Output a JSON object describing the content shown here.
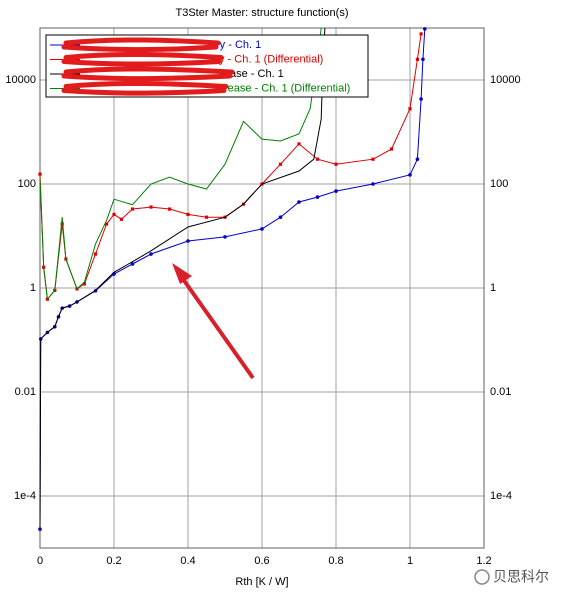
{
  "chart_data": {
    "type": "line",
    "title": "T3Ster Master: structure function(s)",
    "x_label": "Rth  [K / W]",
    "log_y": true,
    "grid": true,
    "ylim": [
      1e-05,
      100000
    ],
    "xlim": [
      0,
      1.2
    ],
    "xticks": [
      0,
      0.2,
      0.4,
      0.6,
      0.8,
      1,
      1.2
    ],
    "yticks": [
      {
        "value": 0.0001,
        "label": "1e-4"
      },
      0.01,
      1,
      100,
      10000
    ],
    "legend": "top-left",
    "series": [
      {
        "name": "ry - Ch. 1",
        "color": "#0000cc",
        "marker": "circle",
        "x": [
          0,
          0.002,
          0.02,
          0.04,
          0.05,
          0.06,
          0.08,
          0.1,
          0.15,
          0.2,
          0.25,
          0.3,
          0.4,
          0.5,
          0.6,
          0.65,
          0.7,
          0.75,
          0.8,
          0.9,
          1.0,
          1.02,
          1.03,
          1.035,
          1.04
        ],
        "values": [
          2.3e-05,
          0.105,
          0.14,
          0.18,
          0.28,
          0.41,
          0.45,
          0.54,
          0.88,
          1.86,
          2.9,
          4.5,
          8.0,
          9.6,
          13.7,
          23,
          45,
          56,
          73,
          100,
          150,
          300,
          4300,
          25000,
          96000
        ]
      },
      {
        "name": "y - Ch. 1 (Differential)",
        "color": "#e00000",
        "marker": "square",
        "x": [
          0,
          0.01,
          0.02,
          0.04,
          0.06,
          0.07,
          0.1,
          0.12,
          0.15,
          0.18,
          0.2,
          0.22,
          0.25,
          0.3,
          0.35,
          0.4,
          0.45,
          0.5,
          0.55,
          0.6,
          0.65,
          0.7,
          0.75,
          0.8,
          0.9,
          0.95,
          1.0,
          1.02,
          1.03
        ],
        "values": [
          155,
          2.5,
          0.61,
          0.9,
          17,
          3.6,
          0.96,
          1.2,
          4.5,
          17,
          26,
          21,
          33,
          36,
          33,
          26,
          23,
          23,
          41,
          100,
          240,
          590,
          300,
          240,
          300,
          470,
          2800,
          25000,
          77000
        ]
      },
      {
        "name": "ase - Ch. 1",
        "color": "#000000",
        "marker": null,
        "x": [
          0,
          0.002,
          0.02,
          0.04,
          0.05,
          0.06,
          0.08,
          0.1,
          0.15,
          0.2,
          0.25,
          0.3,
          0.4,
          0.5,
          0.55,
          0.6,
          0.7,
          0.74,
          0.76,
          0.765,
          0.77
        ],
        "values": [
          2.3e-05,
          0.105,
          0.14,
          0.18,
          0.28,
          0.41,
          0.45,
          0.54,
          0.9,
          2.0,
          3.2,
          5.2,
          14.9,
          23,
          41,
          100,
          178,
          300,
          1780,
          25000,
          100000
        ]
      },
      {
        "name": "rease - Ch. 1 (Differential)",
        "color": "#008000",
        "marker": null,
        "x": [
          0,
          0.01,
          0.02,
          0.04,
          0.06,
          0.07,
          0.1,
          0.12,
          0.15,
          0.18,
          0.2,
          0.25,
          0.3,
          0.35,
          0.4,
          0.45,
          0.5,
          0.55,
          0.6,
          0.65,
          0.7,
          0.73,
          0.75,
          0.76
        ],
        "values": [
          130,
          2.5,
          0.61,
          0.9,
          23,
          3.6,
          0.96,
          1.3,
          7,
          20,
          51,
          40,
          100,
          136,
          100,
          80,
          240,
          1600,
          730,
          670,
          920,
          2800,
          25000,
          100000
        ]
      }
    ]
  },
  "watermark": "贝思科尔"
}
